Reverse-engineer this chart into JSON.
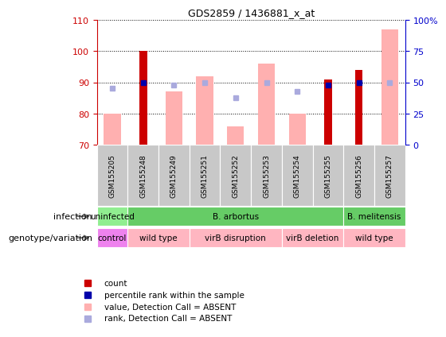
{
  "title": "GDS2859 / 1436881_x_at",
  "samples": [
    "GSM155205",
    "GSM155248",
    "GSM155249",
    "GSM155251",
    "GSM155252",
    "GSM155253",
    "GSM155254",
    "GSM155255",
    "GSM155256",
    "GSM155257"
  ],
  "ylim": [
    70,
    110
  ],
  "y2lim": [
    0,
    100
  ],
  "yticks": [
    70,
    80,
    90,
    100,
    110
  ],
  "y2ticks": [
    0,
    25,
    50,
    75,
    100
  ],
  "y2ticklabels": [
    "0",
    "25",
    "50",
    "75",
    "100%"
  ],
  "red_bars": [
    null,
    100,
    null,
    null,
    null,
    null,
    null,
    91,
    94,
    null
  ],
  "pink_bars": [
    80,
    null,
    87,
    92,
    76,
    96,
    80,
    null,
    null,
    107
  ],
  "blue_squares": [
    88,
    null,
    89,
    90,
    85,
    90,
    87,
    null,
    null,
    90
  ],
  "dark_blue_squares": [
    null,
    90,
    null,
    null,
    null,
    null,
    null,
    89,
    90,
    null
  ],
  "inf_groups": [
    {
      "label": "uninfected",
      "start": 0,
      "end": 1,
      "color": "#90EE90"
    },
    {
      "label": "B. arbortus",
      "start": 1,
      "end": 8,
      "color": "#66CC66"
    },
    {
      "label": "B. melitensis",
      "start": 8,
      "end": 10,
      "color": "#66CC66"
    }
  ],
  "gen_groups": [
    {
      "label": "control",
      "start": 0,
      "end": 1,
      "color": "#EE82EE"
    },
    {
      "label": "wild type",
      "start": 1,
      "end": 3,
      "color": "#FFB6C1"
    },
    {
      "label": "virB disruption",
      "start": 3,
      "end": 6,
      "color": "#FFB6C1"
    },
    {
      "label": "virB deletion",
      "start": 6,
      "end": 8,
      "color": "#FFB6C1"
    },
    {
      "label": "wild type",
      "start": 8,
      "end": 10,
      "color": "#FFB6C1"
    }
  ],
  "red_color": "#CC0000",
  "pink_color": "#FFB0B0",
  "blue_color": "#AAAADD",
  "dark_blue_color": "#0000AA",
  "axis_color_left": "#CC0000",
  "axis_color_right": "#0000CC",
  "col_bg": "#C8C8C8",
  "legend": [
    {
      "color": "#CC0000",
      "label": "count"
    },
    {
      "color": "#0000AA",
      "label": "percentile rank within the sample"
    },
    {
      "color": "#FFB0B0",
      "label": "value, Detection Call = ABSENT"
    },
    {
      "color": "#AAAADD",
      "label": "rank, Detection Call = ABSENT"
    }
  ]
}
